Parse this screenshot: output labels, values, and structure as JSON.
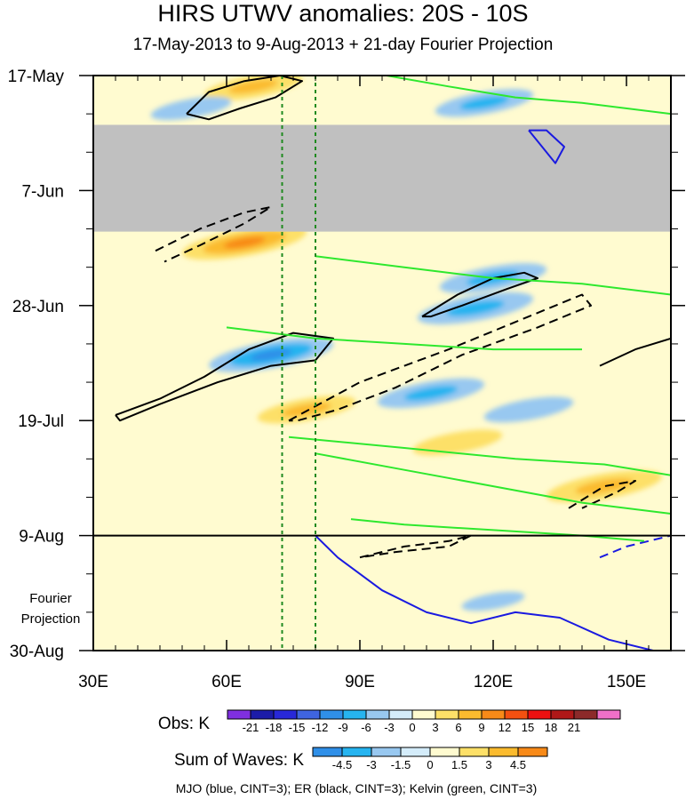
{
  "chart_data": {
    "type": "heatmap",
    "title": "HIRS UTWV anomalies: 20S - 10S",
    "subtitle": "17-May-2013 to 9-Aug-2013 + 21-day Fourier Projection",
    "x_axis": {
      "range": [
        30,
        160
      ],
      "ticks": [
        30,
        60,
        90,
        120,
        150
      ],
      "tick_labels": [
        "30E",
        "60E",
        "90E",
        "120E",
        "150E"
      ]
    },
    "y_axis": {
      "range_days": [
        0,
        105
      ],
      "ticks_days": [
        0,
        21,
        42,
        63,
        84,
        105
      ],
      "tick_labels": [
        "17-May",
        "7-Jun",
        "28-Jun",
        "19-Jul",
        "9-Aug",
        "30-Aug"
      ],
      "reversed": true
    },
    "missing_data_days": [
      9,
      28.5
    ],
    "observation_end_day": 84,
    "reference_longitudes": [
      72.5,
      80
    ],
    "fourier_label": "Fourier Projection",
    "obs_colorbar": {
      "label": "Obs: K",
      "levels": [
        -21,
        -18,
        -15,
        -12,
        -9,
        -6,
        -3,
        0,
        3,
        6,
        9,
        12,
        15,
        18,
        21
      ],
      "colors": [
        "#7f2fe0",
        "#1c1ca8",
        "#2828d8",
        "#3f64e0",
        "#2f8fe8",
        "#26b4f0",
        "#98c8f0",
        "#d4ecfa",
        "#fffbd0",
        "#fde068",
        "#fbbb2e",
        "#f88a18",
        "#f45010",
        "#ee1010",
        "#b01818",
        "#8c2a2a",
        "#f070c8"
      ]
    },
    "waves_colorbar": {
      "label": "Sum of Waves: K",
      "levels": [
        -4.5,
        -3,
        -1.5,
        0,
        1.5,
        3,
        4.5
      ],
      "colors": [
        "#2f8fe8",
        "#26b4f0",
        "#98c8f0",
        "#d4ecfa",
        "#fffbd0",
        "#fde068",
        "#fbbb2e",
        "#f88a18"
      ]
    },
    "legend_text": "MJO (blue, CINT=3); ER (black, CINT=3); Kelvin (green, CINT=3)",
    "anomaly_features": [
      {
        "lon": 66,
        "day": 2,
        "value": 6
      },
      {
        "lon": 52,
        "day": 6,
        "value": -4
      },
      {
        "lon": 118,
        "day": 5,
        "value": -6
      },
      {
        "lon": 64,
        "day": 30.5,
        "value": 9
      },
      {
        "lon": 120,
        "day": 37,
        "value": -7
      },
      {
        "lon": 116,
        "day": 42.5,
        "value": -8
      },
      {
        "lon": 70,
        "day": 51,
        "value": -9
      },
      {
        "lon": 106,
        "day": 58,
        "value": -7
      },
      {
        "lon": 128,
        "day": 61,
        "value": -5
      },
      {
        "lon": 78,
        "day": 61,
        "value": 6
      },
      {
        "lon": 112,
        "day": 67,
        "value": 5
      },
      {
        "lon": 145,
        "day": 75,
        "value": 8
      },
      {
        "lon": 120,
        "day": 96,
        "value": -2
      }
    ],
    "contours": {
      "MJO": [
        {
          "lon": [
            80,
            85,
            95,
            105,
            115,
            125,
            135,
            146,
            156
          ],
          "day": [
            84,
            88,
            94,
            98,
            100,
            98,
            99,
            103,
            105
          ],
          "sign": "positive"
        },
        {
          "lon": [
            128,
            130,
            134,
            136,
            132,
            128
          ],
          "day": [
            10,
            12,
            16,
            13,
            10,
            10
          ],
          "sign": "positive"
        },
        {
          "lon": [
            144,
            150,
            155,
            160
          ],
          "day": [
            88,
            86,
            85,
            84
          ],
          "sign": "negative"
        }
      ],
      "ER": [
        {
          "lon": [
            51,
            56,
            64,
            72,
            77,
            71,
            63,
            56,
            51
          ],
          "day": [
            7,
            3,
            1,
            0,
            1,
            4,
            6,
            8,
            7
          ],
          "sign": "positive"
        },
        {
          "lon": [
            35,
            45,
            55,
            65,
            75,
            84,
            80,
            70,
            58,
            45,
            36,
            35
          ],
          "day": [
            62,
            59,
            55,
            50,
            47,
            48,
            52,
            53,
            56,
            60,
            63,
            62
          ],
          "sign": "positive"
        },
        {
          "lon": [
            104,
            112,
            120,
            127,
            130,
            123,
            113,
            106,
            104
          ],
          "day": [
            44,
            40,
            37,
            36,
            37,
            39,
            42,
            44,
            44
          ],
          "sign": "positive"
        },
        {
          "lon": [
            144,
            152,
            160
          ],
          "day": [
            53,
            50,
            48
          ],
          "sign": "positive"
        },
        {
          "lon": [
            44,
            54,
            64,
            70,
            64,
            54,
            46
          ],
          "day": [
            32,
            28,
            25,
            24,
            27,
            31,
            34
          ],
          "sign": "negative"
        },
        {
          "lon": [
            74,
            90,
            110,
            125,
            140,
            142,
            130,
            113,
            98,
            85,
            76,
            74
          ],
          "day": [
            63,
            56,
            50,
            45,
            40,
            42,
            46,
            51,
            57,
            61,
            63,
            63
          ],
          "sign": "negative"
        },
        {
          "lon": [
            90,
            100,
            110,
            115,
            110,
            98,
            90
          ],
          "day": [
            88,
            86,
            85,
            84,
            86,
            87,
            88
          ],
          "sign": "negative"
        },
        {
          "lon": [
            137,
            145,
            152,
            148,
            140
          ],
          "day": [
            79,
            75,
            74,
            76,
            79
          ],
          "sign": "negative"
        }
      ],
      "Kelvin": [
        {
          "lon": [
            96,
            110,
            125,
            140,
            160
          ],
          "day": [
            0,
            2,
            4,
            5,
            7
          ],
          "sign": "positive"
        },
        {
          "lon": [
            80,
            100,
            120,
            140,
            160
          ],
          "day": [
            33,
            35,
            37,
            38,
            40
          ],
          "sign": "positive"
        },
        {
          "lon": [
            60,
            80,
            100,
            120,
            140
          ],
          "day": [
            46,
            48,
            49,
            50,
            50
          ],
          "sign": "positive"
        },
        {
          "lon": [
            74,
            100,
            125,
            145,
            160
          ],
          "day": [
            66,
            68,
            70,
            71,
            73
          ],
          "sign": "positive"
        },
        {
          "lon": [
            80,
            100,
            120,
            140,
            160
          ],
          "day": [
            69,
            72,
            75,
            78,
            80
          ],
          "sign": "positive"
        },
        {
          "lon": [
            88,
            100,
            120,
            140,
            154
          ],
          "day": [
            81,
            82,
            83,
            84,
            85
          ],
          "sign": "positive"
        }
      ]
    }
  }
}
